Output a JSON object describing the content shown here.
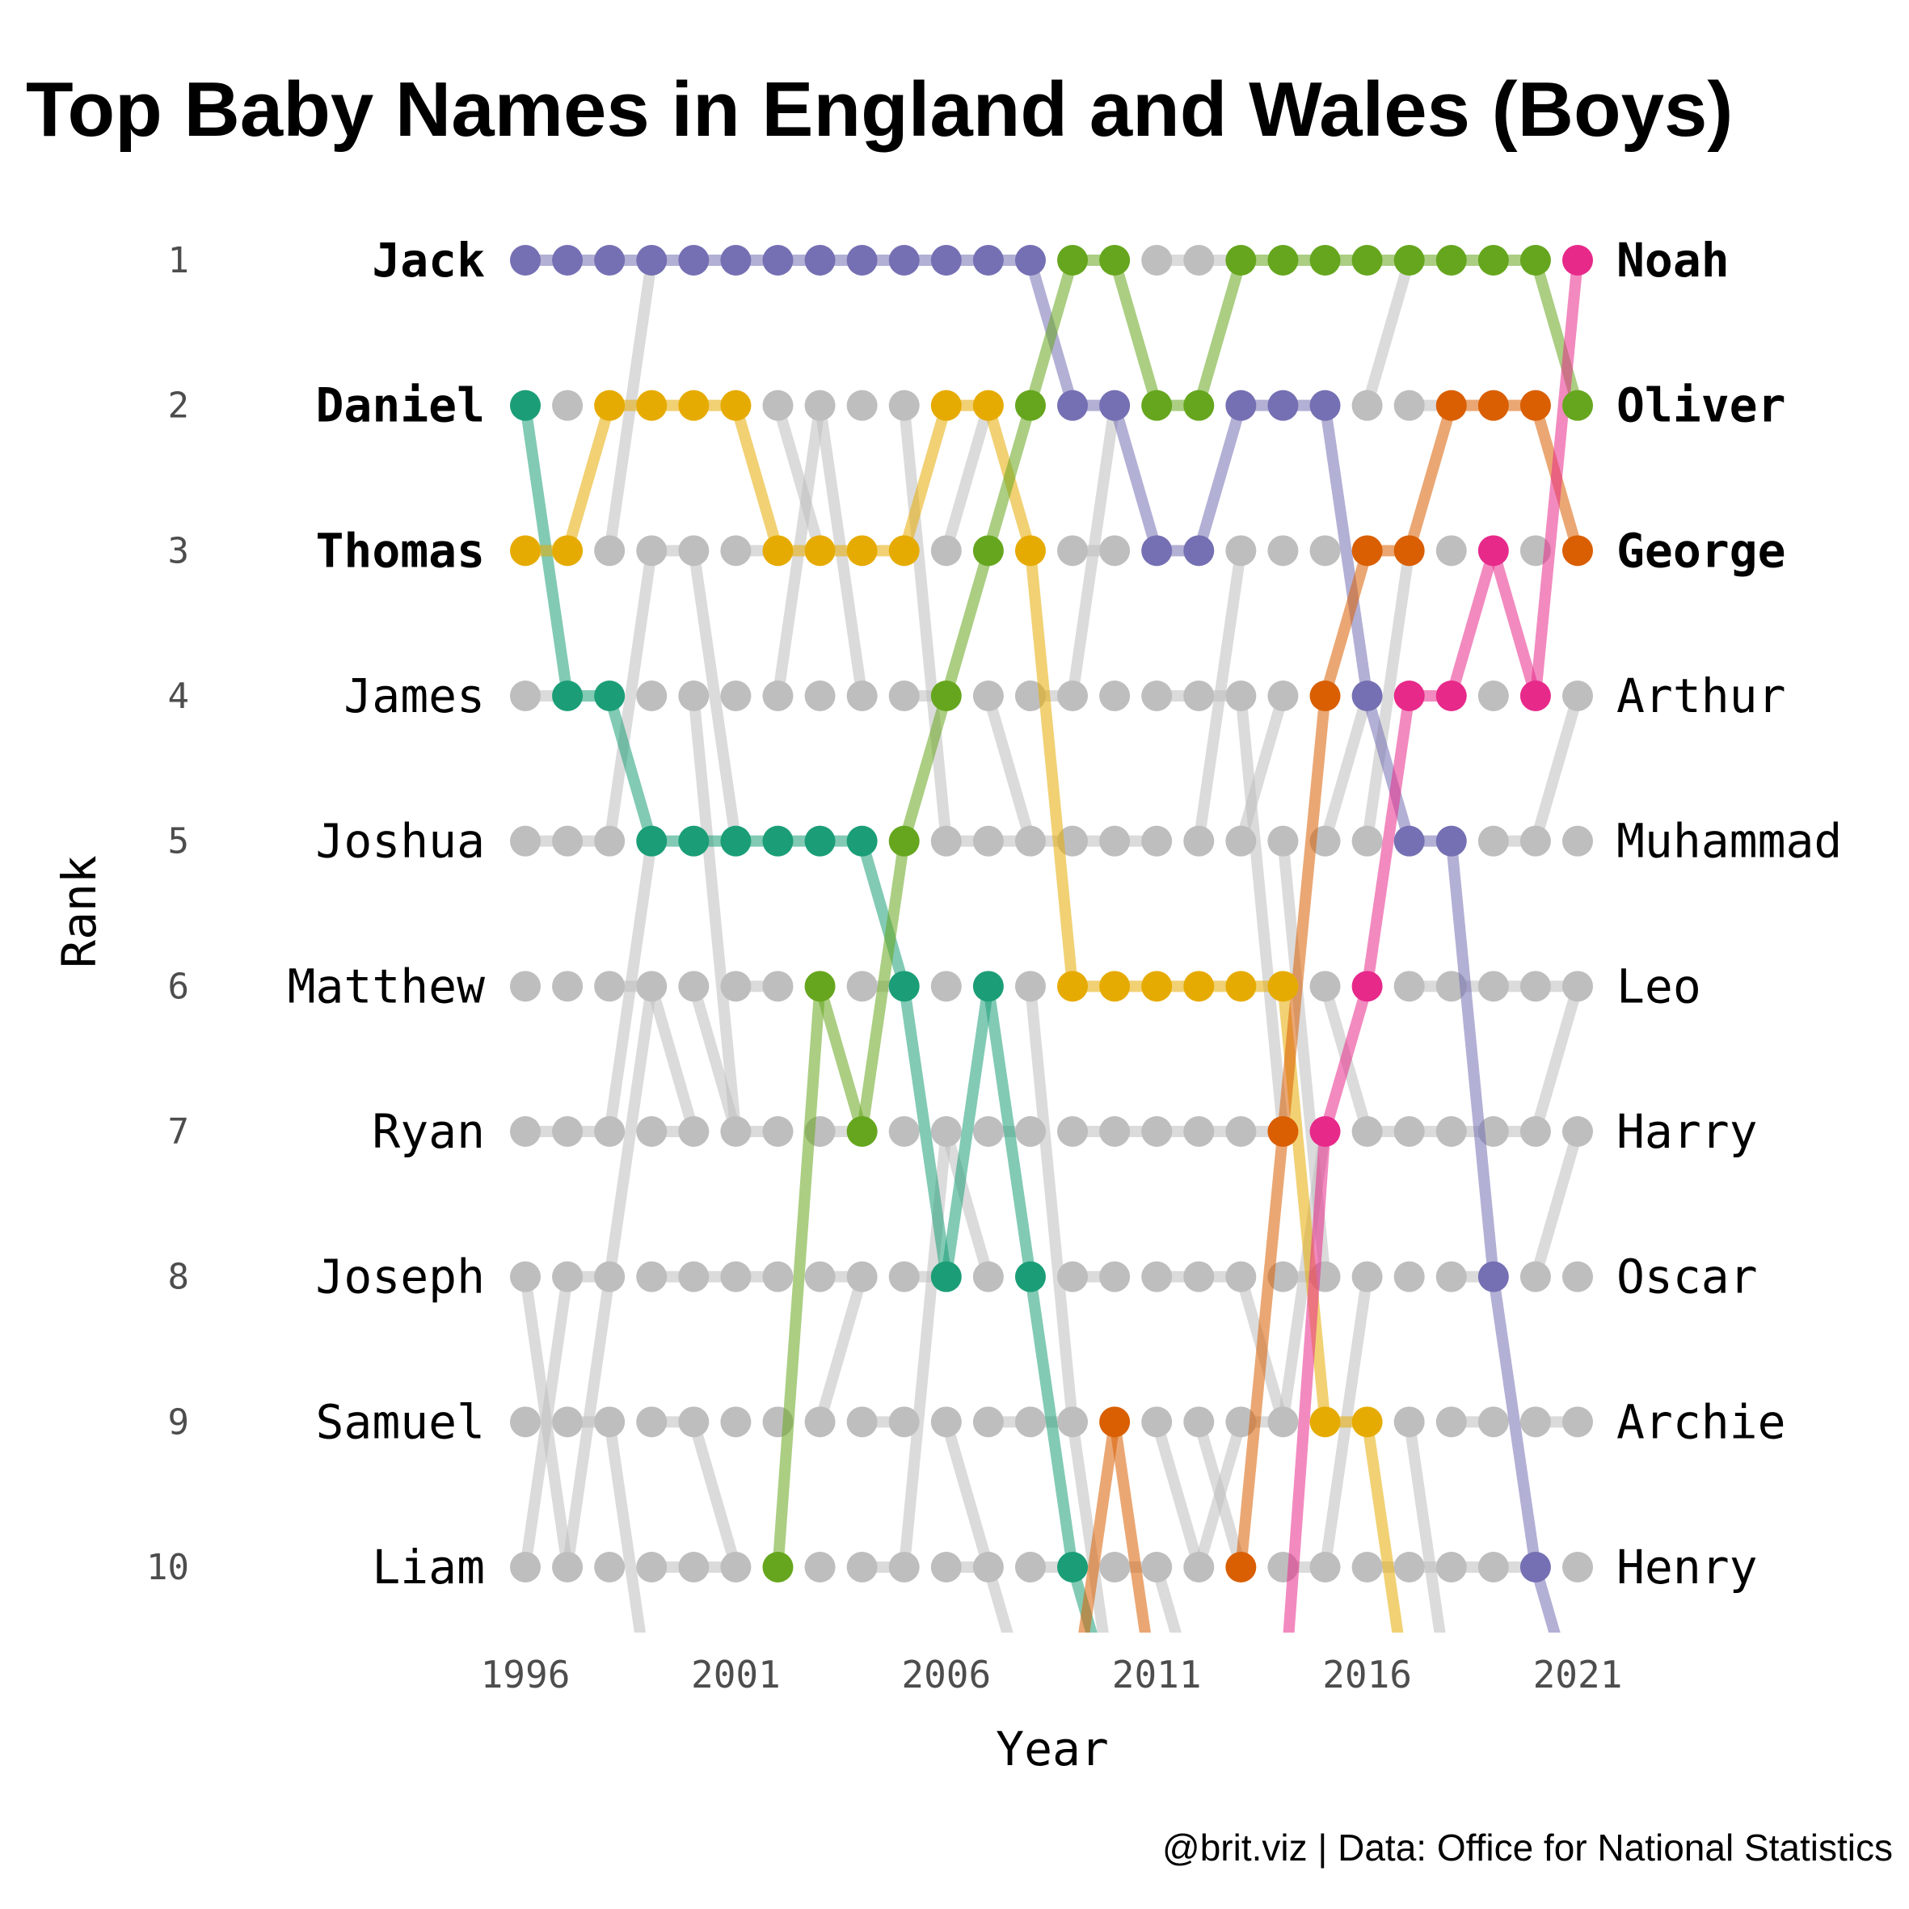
{
  "chart_data": {
    "type": "line",
    "title": "Top Baby Names in England and Wales (Boys)",
    "xlabel": "Year",
    "ylabel": "Rank",
    "caption": "@brit.viz | Data: Office for National Statistics",
    "x_ticks": [
      "1996",
      "2001",
      "2006",
      "2011",
      "2016",
      "2021"
    ],
    "rank_ticks": [
      "1",
      "2",
      "3",
      "4",
      "5",
      "6",
      "7",
      "8",
      "9",
      "10"
    ],
    "years": [
      1996,
      1997,
      1998,
      1999,
      2000,
      2001,
      2002,
      2003,
      2004,
      2005,
      2006,
      2007,
      2008,
      2009,
      2010,
      2011,
      2012,
      2013,
      2014,
      2015,
      2016,
      2017,
      2018,
      2019,
      2020,
      2021
    ],
    "xlim": [
      1996,
      2021
    ],
    "ylim": [
      1,
      10
    ],
    "y_reversed": true,
    "left_labels": [
      "Jack",
      "Daniel",
      "Thomas",
      "James",
      "Joshua",
      "Matthew",
      "Ryan",
      "Joseph",
      "Samuel",
      "Liam"
    ],
    "right_labels": [
      "Noah",
      "Oliver",
      "George",
      "Arthur",
      "Muhammad",
      "Leo",
      "Harry",
      "Oscar",
      "Archie",
      "Henry"
    ],
    "highlight_colors": {
      "Jack": "#7570b3",
      "Daniel": "#1b9e77",
      "Thomas": "#e6ab02",
      "Oliver": "#66a61e",
      "George": "#d95f02",
      "Noah": "#e7298a"
    },
    "gray_color": "#bebebe",
    "series": [
      {
        "name": "Jack",
        "color": "#7570b3",
        "values": [
          1,
          1,
          1,
          1,
          1,
          1,
          1,
          1,
          1,
          1,
          1,
          1,
          1,
          2,
          2,
          3,
          3,
          2,
          2,
          2,
          4,
          5,
          5,
          8,
          10,
          11
        ]
      },
      {
        "name": "Daniel",
        "color": "#1b9e77",
        "values": [
          2,
          4,
          4,
          5,
          5,
          5,
          5,
          5,
          5,
          6,
          8,
          6,
          8,
          10,
          11,
          null,
          null,
          null,
          null,
          null,
          null,
          null,
          null,
          null,
          null,
          null
        ]
      },
      {
        "name": "Thomas",
        "color": "#e6ab02",
        "values": [
          3,
          3,
          2,
          2,
          2,
          2,
          3,
          3,
          3,
          3,
          2,
          2,
          3,
          6,
          6,
          6,
          6,
          6,
          6,
          9,
          9,
          11,
          null,
          null,
          null,
          null
        ]
      },
      {
        "name": "Oliver",
        "color": "#66a61e",
        "values": [
          null,
          null,
          null,
          null,
          null,
          null,
          10,
          6,
          7,
          5,
          4,
          3,
          2,
          1,
          1,
          2,
          2,
          1,
          1,
          1,
          1,
          1,
          1,
          1,
          1,
          2
        ]
      },
      {
        "name": "George",
        "color": "#d95f02",
        "values": [
          null,
          null,
          null,
          null,
          null,
          null,
          null,
          null,
          null,
          null,
          null,
          null,
          null,
          11,
          9,
          11,
          null,
          10,
          7,
          4,
          3,
          3,
          2,
          2,
          2,
          3
        ]
      },
      {
        "name": "Noah",
        "color": "#e7298a",
        "values": [
          null,
          null,
          null,
          null,
          null,
          null,
          null,
          null,
          null,
          null,
          null,
          null,
          null,
          null,
          null,
          null,
          null,
          null,
          11,
          7,
          6,
          4,
          4,
          3,
          4,
          1
        ]
      }
    ]
  }
}
